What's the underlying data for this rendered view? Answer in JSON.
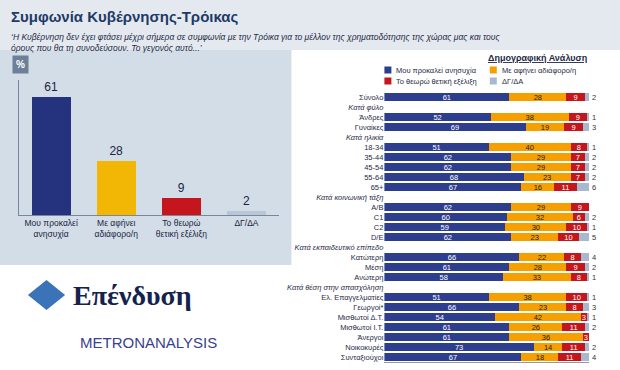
{
  "chart_data": [
    {
      "type": "bar",
      "title": "Συμφωνία Κυβέρνησης-Τρόικας",
      "subtitle": "‘Η Κυβέρνηση δεν έχει φτάσει μέχρι σήμερα σε συμφωνία με την Τρόικα για το μέλλον της χρηματοδότησης της χώρας μας και τους όρους που θα τη συνοδεύσουν. Το γεγονός αυτό...’",
      "annotations": [
        "%"
      ],
      "categories": [
        "Μου προκαλεί ανησυχία",
        "Με αφήνει αδιάφορο/η",
        "Το θεωρώ θετική εξέλιξη",
        "ΔΓ/ΔΑ"
      ],
      "values": [
        61,
        28,
        9,
        2
      ],
      "colors": [
        "#25337e",
        "#f2b705",
        "#c4161c",
        "#b9c6d8"
      ],
      "ylim": [
        0,
        70
      ],
      "grid": false,
      "data_labels": true,
      "tick_labels": "x"
    },
    {
      "type": "bar",
      "title": "Δημογραφική Ανάλυση",
      "orientation": "horizontal",
      "stacked": true,
      "legend": "top right",
      "grid": false,
      "data_labels": true,
      "tick_labels": "y",
      "xlim": [
        0,
        100
      ],
      "categories": [
        "Σύνολο",
        "Κατά φύλο",
        "Άνδρες",
        "Γυναίκες",
        "Κατά ηλικία",
        "18-34",
        "35-44",
        "45-54",
        "55-64",
        "65+",
        "Κατά κοινωνική τάξη",
        "A/B",
        "C1",
        "C2",
        "D/E",
        "Κατά εκπαιδευτικό επίπεδο",
        "Κατώτερη",
        "Μέση",
        "Ανώτερη",
        "Κατά θέση στην απασχόληση",
        "Ελ. Επαγγελματίες",
        "Γεωργοί*",
        "Μισθωτοί Δ.Τ.",
        "Μισθωτοί Ι.Τ.",
        "Άνεργοι",
        "Νοικοκυρές",
        "Συνταξιούχοι"
      ],
      "series": [
        {
          "name": "Μου προκαλεί ανησυχία",
          "color": "#2d3e8f",
          "values": [
            61,
            null,
            52,
            69,
            null,
            51,
            62,
            62,
            68,
            67,
            null,
            62,
            60,
            59,
            62,
            null,
            66,
            61,
            58,
            null,
            51,
            66,
            54,
            61,
            61,
            73,
            67
          ]
        },
        {
          "name": "Με αφήνει αδιάφορο/η",
          "color": "#f5a000",
          "values": [
            28,
            null,
            38,
            19,
            null,
            40,
            29,
            29,
            23,
            16,
            null,
            29,
            32,
            30,
            23,
            null,
            22,
            28,
            33,
            null,
            38,
            23,
            42,
            26,
            36,
            14,
            18
          ]
        },
        {
          "name": "Το θεωρώ θετική εξέλιξη",
          "color": "#c4161c",
          "values": [
            9,
            null,
            9,
            9,
            null,
            8,
            7,
            7,
            7,
            11,
            null,
            9,
            6,
            10,
            10,
            null,
            8,
            9,
            8,
            null,
            10,
            8,
            3,
            11,
            3,
            11,
            11
          ]
        },
        {
          "name": "ΔΓ/ΔΑ",
          "color": "#a8b8cf",
          "values": [
            2,
            null,
            1,
            3,
            null,
            1,
            2,
            2,
            2,
            6,
            null,
            null,
            2,
            1,
            5,
            null,
            4,
            2,
            1,
            null,
            1,
            3,
            1,
            2,
            null,
            2,
            4
          ]
        }
      ]
    }
  ],
  "logos": [
    "Επένδυση",
    "METRONANALYSIS"
  ]
}
